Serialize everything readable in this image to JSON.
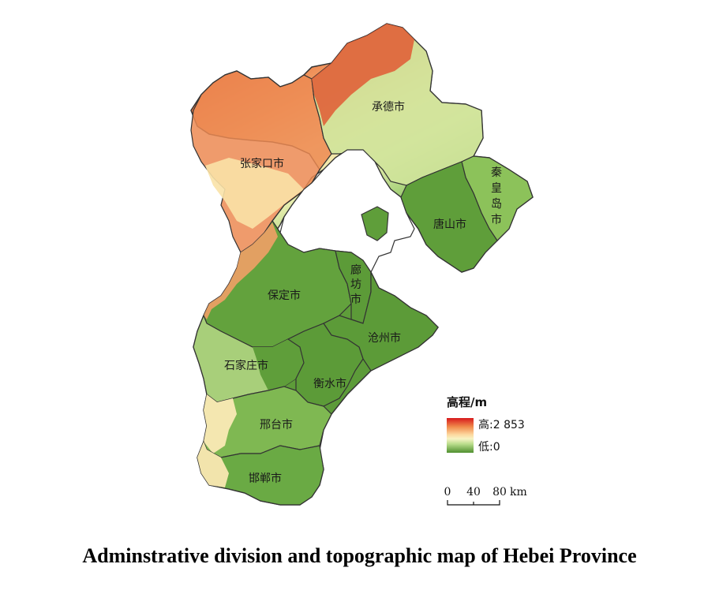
{
  "caption": "Adminstrative division and topographic map of Hebei Province",
  "legend": {
    "title": "高程/m",
    "high_label": "高:2 853",
    "low_label": "低:0",
    "colors": [
      "#d7191c",
      "#f08a4b",
      "#fdd9a0",
      "#f7f3c4",
      "#b9dc8b",
      "#6aae44",
      "#4f8f2f"
    ]
  },
  "scale_bar": {
    "ticks": [
      "0",
      "40",
      "80"
    ],
    "unit": "km"
  },
  "regions": {
    "chengde": "承德市",
    "zhangjiakou": "张家口市",
    "qinhuangdao": [
      "秦",
      "皇",
      "岛",
      "市"
    ],
    "tangshan": "唐山市",
    "langfang": [
      "廊",
      "坊",
      "市"
    ],
    "baoding": "保定市",
    "cangzhou": "沧州市",
    "shijiazhuang": "石家庄市",
    "hengshui": "衡水市",
    "xingtai": "邢台市",
    "handan": "邯郸市"
  },
  "colors": {
    "mountain_high": "#d7191c",
    "mountain_mid": "#f08a4b",
    "plateau": "#fbe3a8",
    "hill": "#cfe59a",
    "plain": "#5f9e3a",
    "border": "#333333"
  }
}
